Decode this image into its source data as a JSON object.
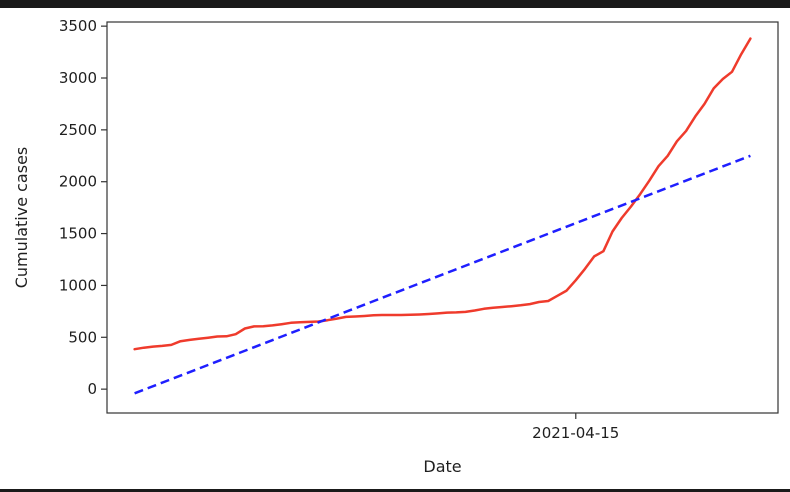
{
  "chart_data": {
    "type": "line",
    "xlabel": "Date",
    "ylabel": "Cumulative cases",
    "ylim": [
      -230,
      3540
    ],
    "xlim": [
      -5,
      141
    ],
    "x_ticks": [
      {
        "x": 97,
        "label": "2021-04-15"
      }
    ],
    "y_ticks": [
      {
        "value": 0,
        "label": "0"
      },
      {
        "value": 500,
        "label": "500"
      },
      {
        "value": 1000,
        "label": "1000"
      },
      {
        "value": 1500,
        "label": "1500"
      },
      {
        "value": 2000,
        "label": "2000"
      },
      {
        "value": 2500,
        "label": "2500"
      },
      {
        "value": 3000,
        "label": "3000"
      },
      {
        "value": 3500,
        "label": "3500"
      }
    ],
    "grid": false,
    "legend": false,
    "series": [
      {
        "style": "solid",
        "color": "#ef3b2c",
        "points": [
          [
            1,
            385
          ],
          [
            3,
            400
          ],
          [
            5,
            410
          ],
          [
            7,
            417
          ],
          [
            9,
            427
          ],
          [
            11,
            462
          ],
          [
            13,
            475
          ],
          [
            15,
            485
          ],
          [
            17,
            496
          ],
          [
            19,
            508
          ],
          [
            21,
            510
          ],
          [
            23,
            530
          ],
          [
            25,
            585
          ],
          [
            27,
            605
          ],
          [
            29,
            607
          ],
          [
            31,
            615
          ],
          [
            33,
            626
          ],
          [
            35,
            640
          ],
          [
            37,
            645
          ],
          [
            39,
            648
          ],
          [
            41,
            652
          ],
          [
            43,
            665
          ],
          [
            45,
            680
          ],
          [
            47,
            697
          ],
          [
            49,
            700
          ],
          [
            51,
            705
          ],
          [
            53,
            712
          ],
          [
            55,
            715
          ],
          [
            57,
            715
          ],
          [
            59,
            715
          ],
          [
            61,
            717
          ],
          [
            63,
            720
          ],
          [
            65,
            725
          ],
          [
            67,
            730
          ],
          [
            69,
            738
          ],
          [
            71,
            740
          ],
          [
            73,
            745
          ],
          [
            75,
            758
          ],
          [
            77,
            775
          ],
          [
            79,
            785
          ],
          [
            81,
            792
          ],
          [
            83,
            800
          ],
          [
            85,
            808
          ],
          [
            87,
            820
          ],
          [
            89,
            840
          ],
          [
            91,
            850
          ],
          [
            93,
            900
          ],
          [
            95,
            950
          ],
          [
            97,
            1050
          ],
          [
            99,
            1160
          ],
          [
            101,
            1280
          ],
          [
            103,
            1330
          ],
          [
            105,
            1520
          ],
          [
            107,
            1650
          ],
          [
            109,
            1760
          ],
          [
            111,
            1880
          ],
          [
            113,
            2010
          ],
          [
            115,
            2150
          ],
          [
            117,
            2250
          ],
          [
            119,
            2390
          ],
          [
            121,
            2490
          ],
          [
            123,
            2630
          ],
          [
            125,
            2750
          ],
          [
            127,
            2900
          ],
          [
            129,
            2990
          ],
          [
            131,
            3060
          ],
          [
            133,
            3230
          ],
          [
            135,
            3380
          ]
        ]
      },
      {
        "style": "dashed",
        "color": "#1f1fff",
        "points": [
          [
            1,
            -40
          ],
          [
            135,
            2250
          ]
        ]
      }
    ]
  }
}
